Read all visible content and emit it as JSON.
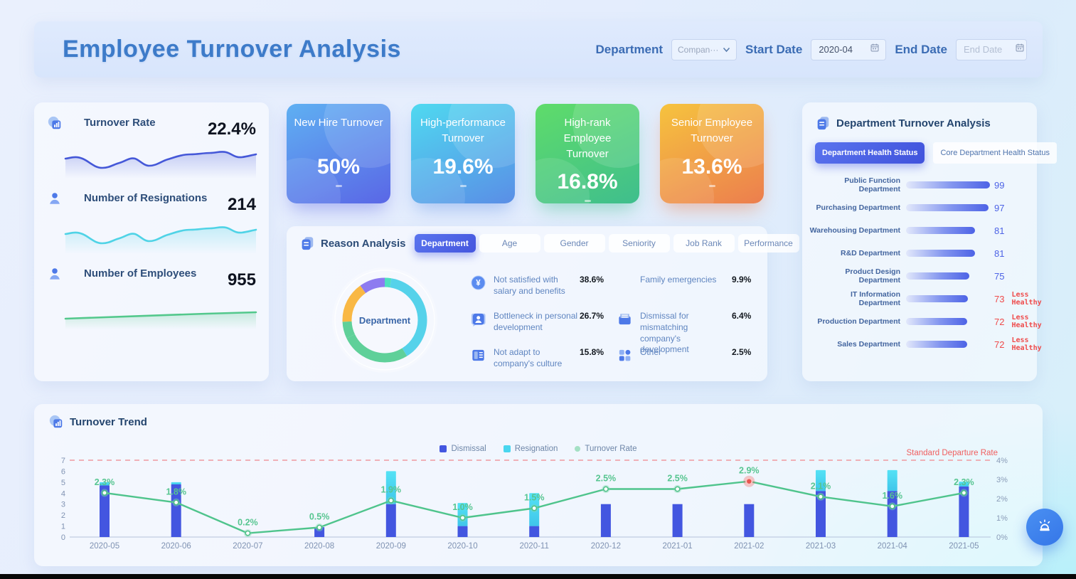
{
  "header": {
    "title": "Employee Turnover Analysis",
    "filters": {
      "department_label": "Department",
      "department_value": "Compan···",
      "start_date_label": "Start Date",
      "start_date_value": "2020-04",
      "end_date_label": "End Date",
      "end_date_placeholder": "End Date"
    }
  },
  "stats": {
    "items": [
      {
        "label": "Turnover Rate",
        "value": "22.4%",
        "icon": "chart-icon",
        "color": "#4558d8"
      },
      {
        "label": "Number of Resignations",
        "value": "214",
        "icon": "user-icon",
        "color": "#4fd3e6"
      },
      {
        "label": "Number of Employees",
        "value": "955",
        "icon": "user-icon",
        "color": "#53c88c"
      }
    ]
  },
  "kpi_cards": [
    {
      "label": "New Hire Turnover",
      "value": "50%",
      "gradient": [
        "#5fb0f2",
        "#5a67e6"
      ],
      "shadow": "rgba(90,103,230,0.45)"
    },
    {
      "label": "High-performance Turnover",
      "value": "19.6%",
      "gradient": [
        "#4fd9f0",
        "#5a8ee6"
      ],
      "shadow": "rgba(90,142,230,0.45)"
    },
    {
      "label": "High-rank Employee Turnover",
      "value": "16.8%",
      "gradient": [
        "#5fdc6a",
        "#3fbe8d"
      ],
      "shadow": "rgba(63,190,141,0.45)"
    },
    {
      "label": "Senior Employee Turnover",
      "value": "13.6%",
      "gradient": [
        "#f6c33e",
        "#ec7e4e"
      ],
      "shadow": "rgba(236,126,78,0.45)"
    }
  ],
  "reason_panel": {
    "title": "Reason Analysis",
    "tabs": [
      {
        "label": "Department",
        "active": true
      },
      {
        "label": "Age",
        "active": false
      },
      {
        "label": "Gender",
        "active": false
      },
      {
        "label": "Seniority",
        "active": false
      },
      {
        "label": "Job Rank",
        "active": false
      },
      {
        "label": "Performance",
        "active": false
      }
    ],
    "donut_center_label": "Department",
    "reasons": [
      {
        "icon": "money-icon",
        "label": "Not satisfied with salary and benefits",
        "value": "38.6%"
      },
      {
        "icon": "none",
        "label": "Family emergencies",
        "value": "9.9%"
      },
      {
        "icon": "person-bubble-icon",
        "label": "Bottleneck in personal development",
        "value": "26.7%"
      },
      {
        "icon": "mail-icon",
        "label": "Dismissal for mismatching company's development",
        "value": "6.4%"
      },
      {
        "icon": "building-icon",
        "label": "Not adapt to company's culture",
        "value": "15.8%"
      },
      {
        "icon": "grid-icon",
        "label": "Other",
        "value": "2.5%"
      }
    ]
  },
  "department_panel": {
    "title": "Department Turnover Analysis",
    "tabs": [
      {
        "label": "Department Health Status",
        "active": true
      },
      {
        "label": "Core Department Health Status",
        "active": false
      }
    ]
  },
  "trend_panel": {
    "title": "Turnover Trend",
    "legend": [
      {
        "label": "Dismissal",
        "color": "#4356e0",
        "marker": "square"
      },
      {
        "label": "Resignation",
        "color": "#49d6ef",
        "marker": "square"
      },
      {
        "label": "Turnover Rate",
        "color": "#a4e0c4",
        "marker": "dot"
      }
    ],
    "standard_line_label": "Standard Departure Rate"
  },
  "chart_data": [
    {
      "id": "turnover_trend",
      "type": "bar",
      "title": "Turnover Trend",
      "categories": [
        "2020-05",
        "2020-06",
        "2020-07",
        "2020-08",
        "2020-09",
        "2020-10",
        "2020-11",
        "2020-12",
        "2021-01",
        "2021-02",
        "2021-03",
        "2021-04",
        "2021-05"
      ],
      "series": [
        {
          "name": "Dismissal",
          "type": "bar",
          "axis": "left",
          "color": "#4356e0",
          "values": [
            4.7,
            4.8,
            0,
            0.9,
            3,
            1,
            1,
            3,
            3,
            3,
            4.2,
            4.2,
            4.6
          ]
        },
        {
          "name": "Resignation",
          "type": "bar",
          "axis": "left",
          "color": "#49d6ef",
          "values": [
            0.3,
            0.2,
            0,
            0,
            3,
            2.1,
            3,
            0,
            0,
            0,
            1.9,
            1.9,
            0.45
          ]
        },
        {
          "name": "Turnover Rate",
          "type": "line",
          "axis": "right",
          "color": "#4fc48c",
          "values": [
            2.3,
            1.8,
            0.2,
            0.5,
            1.9,
            1.0,
            1.5,
            2.5,
            2.5,
            2.9,
            2.1,
            1.6,
            2.3
          ],
          "labels": [
            "2.3%",
            "1.8%",
            "0.2%",
            "0.5%",
            "1.9%",
            "1.0%",
            "1.5%",
            "2.5%",
            "2.5%",
            "2.9%",
            "2.1%",
            "1.6%",
            "2.3%"
          ],
          "highlight_index": 9
        }
      ],
      "left_axis": {
        "min": 0,
        "max": 7,
        "ticks": [
          0,
          1,
          2,
          3,
          4,
          5,
          6,
          7
        ]
      },
      "right_axis": {
        "min": 0,
        "max": 4,
        "ticks": [
          "0%",
          "1%",
          "2%",
          "3%",
          "4%"
        ]
      },
      "reference_line": {
        "label": "Standard Departure Rate",
        "value_pct": 4,
        "color": "#f0989f"
      },
      "legend_position": "top-center",
      "grid": false
    },
    {
      "id": "reason_donut",
      "type": "pie",
      "center_label": "Department",
      "slices": [
        {
          "label": "Other",
          "value": 2.5,
          "color": "#4fe0c0"
        },
        {
          "label": "Not satisfied with salary and benefits",
          "value": 38.6,
          "color": "#55d2ea"
        },
        {
          "label": "Bottleneck in personal development",
          "value": 26.7,
          "color": "#5fd099"
        },
        {
          "label": "Dismissal for mismatching company's development",
          "value": 6.4,
          "color": "#5fd099"
        },
        {
          "label": "Not adapt to company's culture",
          "value": 15.8,
          "color": "#f9b844"
        },
        {
          "label": "Family emergencies",
          "value": 9.9,
          "color": "#8d7bf0"
        }
      ]
    },
    {
      "id": "department_health",
      "type": "bar",
      "orientation": "horizontal",
      "max": 99,
      "categories": [
        "Public Function Department",
        "Purchasing Department",
        "Warehousing Department",
        "R&D Department",
        "Product Design Department",
        "IT Information Department",
        "Production Department",
        "Sales Department"
      ],
      "values": [
        99,
        97,
        81,
        81,
        75,
        73,
        72,
        72
      ],
      "tags": [
        null,
        null,
        null,
        null,
        null,
        "Less Healthy",
        "Less Healthy",
        "Less Healthy"
      ]
    }
  ]
}
